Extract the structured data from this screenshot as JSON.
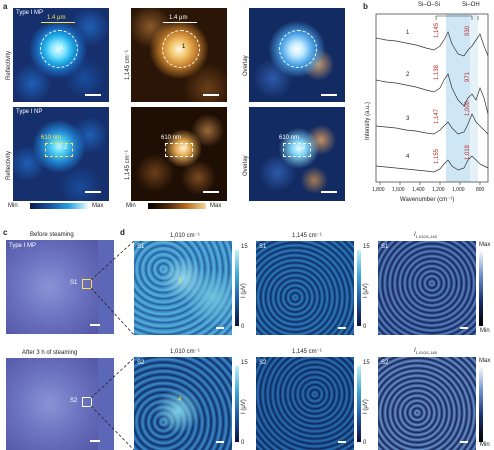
{
  "panels": {
    "a": {
      "letter": "a",
      "row1": {
        "title": "Type I MP",
        "col1_ylabel": "Reflectivity",
        "col2_ylabel": "1,145 cm⁻¹",
        "col3_ylabel": "Overlay",
        "size_label": "1.4 μm",
        "marker": "1"
      },
      "row2": {
        "title": "Type I NP",
        "col1_ylabel": "Reflectivity",
        "col2_ylabel": "1,145 cm⁻¹",
        "col3_ylabel": "Overlay",
        "size_label": "610 nm",
        "marker": "2"
      },
      "colorbar_min": "Min",
      "colorbar_max": "Max"
    },
    "b": {
      "letter": "b",
      "annotation_left": "Si–O–Si",
      "annotation_right": "Si–OH",
      "ylabel": "Intensity (a.u.)",
      "xlabel": "Wavenumber (cm⁻¹)",
      "xticks": [
        "1,800",
        "1,600",
        "1,400",
        "1,200",
        "1,000",
        "800"
      ],
      "spectra_labels": [
        "1",
        "2",
        "3",
        "4"
      ],
      "peak_labels": [
        [
          "1,145",
          "930"
        ],
        [
          "1,138",
          "971"
        ],
        [
          "1,147",
          "1,000"
        ],
        [
          "1,155",
          "1,019"
        ]
      ]
    },
    "c": {
      "letter": "c",
      "top_title": "Before steaming",
      "top_sub": "Type I MP",
      "top_box": "S1",
      "bottom_title": "After 3 h of steaming",
      "bottom_box": "S2"
    },
    "d": {
      "letter": "d",
      "row1": {
        "col1_title": "1,010 cm⁻¹",
        "col2_title": "1,145 cm⁻¹",
        "col3_title": "I",
        "col3_sub": "1,010/1,145",
        "tag": "S1",
        "marker": "3"
      },
      "row2": {
        "col1_title": "1,010 cm⁻¹",
        "col2_title": "1,145 cm⁻¹",
        "col3_title": "I",
        "col3_sub": "1,010/1,145",
        "tag": "S2",
        "marker": "4"
      },
      "cbar_top": "15",
      "cbar_bottom": "0",
      "cbar_label": "I (μV)",
      "cbar3_top": "Max",
      "cbar3_bottom": "Min"
    }
  }
}
